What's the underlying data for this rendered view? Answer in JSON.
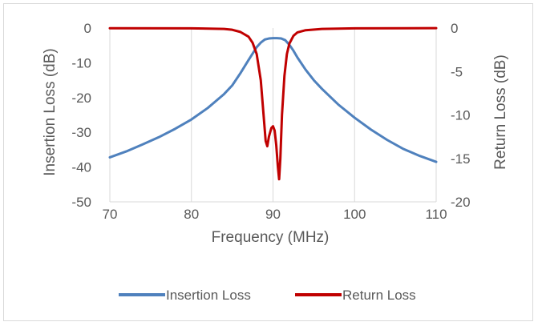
{
  "chart_data": {
    "type": "line",
    "title": "",
    "xlabel": "Frequency (MHz)",
    "ylabel_left": "Insertion Loss (dB)",
    "ylabel_right": "Return Loss (dB)",
    "xlim": [
      70,
      110
    ],
    "ylim_left": [
      -50,
      0
    ],
    "ylim_right": [
      -20,
      0
    ],
    "x_ticks": [
      "70",
      "80",
      "90",
      "100",
      "110"
    ],
    "y_left_ticks": [
      "0",
      "-10",
      "-20",
      "-30",
      "-40",
      "-50"
    ],
    "y_right_ticks": [
      "0",
      "-5",
      "-10",
      "-15",
      "-20"
    ],
    "grid": "vertical",
    "legend_position": "bottom",
    "series": [
      {
        "name": "Insertion Loss",
        "axis": "left",
        "color": "#4f81bd",
        "points": [
          [
            70,
            -37.2
          ],
          [
            72,
            -35.5
          ],
          [
            74,
            -33.5
          ],
          [
            76,
            -31.4
          ],
          [
            78,
            -29.0
          ],
          [
            80,
            -26.3
          ],
          [
            82,
            -23.0
          ],
          [
            84,
            -19.0
          ],
          [
            85,
            -16.5
          ],
          [
            86,
            -13.0
          ],
          [
            87,
            -9.2
          ],
          [
            88,
            -5.5
          ],
          [
            88.5,
            -4.2
          ],
          [
            89,
            -3.3
          ],
          [
            89.5,
            -3.0
          ],
          [
            90,
            -2.9
          ],
          [
            90.5,
            -2.9
          ],
          [
            91,
            -3.0
          ],
          [
            91.5,
            -3.5
          ],
          [
            92,
            -4.8
          ],
          [
            92.5,
            -6.5
          ],
          [
            93,
            -8.5
          ],
          [
            94,
            -12.0
          ],
          [
            95,
            -15.0
          ],
          [
            96,
            -17.5
          ],
          [
            98,
            -22.0
          ],
          [
            100,
            -25.8
          ],
          [
            102,
            -29.2
          ],
          [
            104,
            -32.2
          ],
          [
            106,
            -34.8
          ],
          [
            108,
            -36.8
          ],
          [
            110,
            -38.5
          ]
        ]
      },
      {
        "name": "Return Loss",
        "axis": "right",
        "color": "#c00000",
        "points": [
          [
            70,
            -0.02
          ],
          [
            80,
            -0.03
          ],
          [
            84,
            -0.1
          ],
          [
            85,
            -0.2
          ],
          [
            86,
            -0.45
          ],
          [
            87,
            -1.0
          ],
          [
            87.5,
            -1.7
          ],
          [
            88,
            -3.0
          ],
          [
            88.5,
            -6.0
          ],
          [
            88.8,
            -9.5
          ],
          [
            89.1,
            -13.0
          ],
          [
            89.3,
            -13.6
          ],
          [
            89.5,
            -12.5
          ],
          [
            89.8,
            -11.5
          ],
          [
            90.0,
            -11.3
          ],
          [
            90.2,
            -11.8
          ],
          [
            90.4,
            -13.5
          ],
          [
            90.6,
            -16.0
          ],
          [
            90.75,
            -17.4
          ],
          [
            90.9,
            -15.0
          ],
          [
            91.1,
            -10.0
          ],
          [
            91.4,
            -5.5
          ],
          [
            91.7,
            -3.0
          ],
          [
            92,
            -1.8
          ],
          [
            92.5,
            -0.9
          ],
          [
            93,
            -0.5
          ],
          [
            94,
            -0.25
          ],
          [
            96,
            -0.1
          ],
          [
            100,
            -0.04
          ],
          [
            110,
            -0.01
          ]
        ]
      }
    ]
  }
}
